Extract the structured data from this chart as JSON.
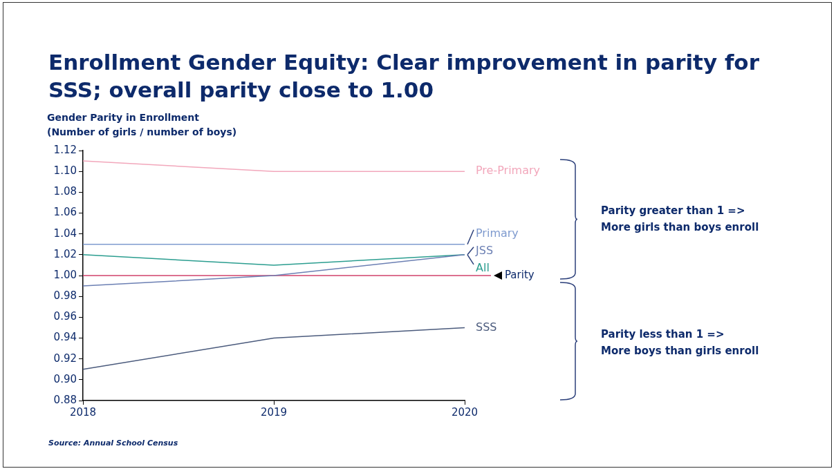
{
  "chart_data": {
    "type": "line",
    "title": "Enrollment Gender Equity: Clear improvement in parity for SSS; overall parity close to 1.00",
    "ylabel": "Gender Parity in Enrollment\n(Number of girls / number of boys)",
    "categories": [
      "2018",
      "2019",
      "2020"
    ],
    "series": [
      {
        "name": "Pre-Primary",
        "color": "#f2a7bb",
        "values": [
          1.11,
          1.1,
          1.1
        ]
      },
      {
        "name": "Primary",
        "color": "#7f9bcf",
        "values": [
          1.03,
          1.03,
          1.03
        ]
      },
      {
        "name": "JSS",
        "color": "#6b7fb3",
        "values": [
          0.99,
          1.0,
          1.02
        ]
      },
      {
        "name": "All",
        "color": "#2a9d8f",
        "values": [
          1.02,
          1.01,
          1.02
        ]
      },
      {
        "name": "SSS",
        "color": "#4a5a7c",
        "values": [
          0.91,
          0.94,
          0.95
        ]
      }
    ],
    "ylim": [
      0.88,
      1.12
    ],
    "yticks": [
      {
        "value": 0.88,
        "label": "0.88"
      },
      {
        "value": 0.9,
        "label": "0.90"
      },
      {
        "value": 0.92,
        "label": "0.92"
      },
      {
        "value": 0.94,
        "label": "0.94"
      },
      {
        "value": 0.96,
        "label": "0.96"
      },
      {
        "value": 0.98,
        "label": "0.98"
      },
      {
        "value": 1,
        "label": "1.00"
      },
      {
        "value": 1.02,
        "label": "1.02"
      },
      {
        "value": 1.04,
        "label": "1.04"
      },
      {
        "value": 1.06,
        "label": "1.06"
      },
      {
        "value": 1.08,
        "label": "1.08"
      },
      {
        "value": 1.1,
        "label": "1.10"
      },
      {
        "value": 1.12,
        "label": "1.12"
      }
    ],
    "ref_lines": [
      {
        "axis": "y",
        "value": 1,
        "label": "Parity",
        "color": "#d0406a"
      }
    ],
    "annotations": [
      "Parity greater than 1 =>\nMore girls than boys enroll",
      "Parity less than 1 =>\nMore boys than girls enroll",
      "Source: Annual School Census"
    ],
    "legend": false,
    "marker": "none",
    "line_style": "solid"
  }
}
